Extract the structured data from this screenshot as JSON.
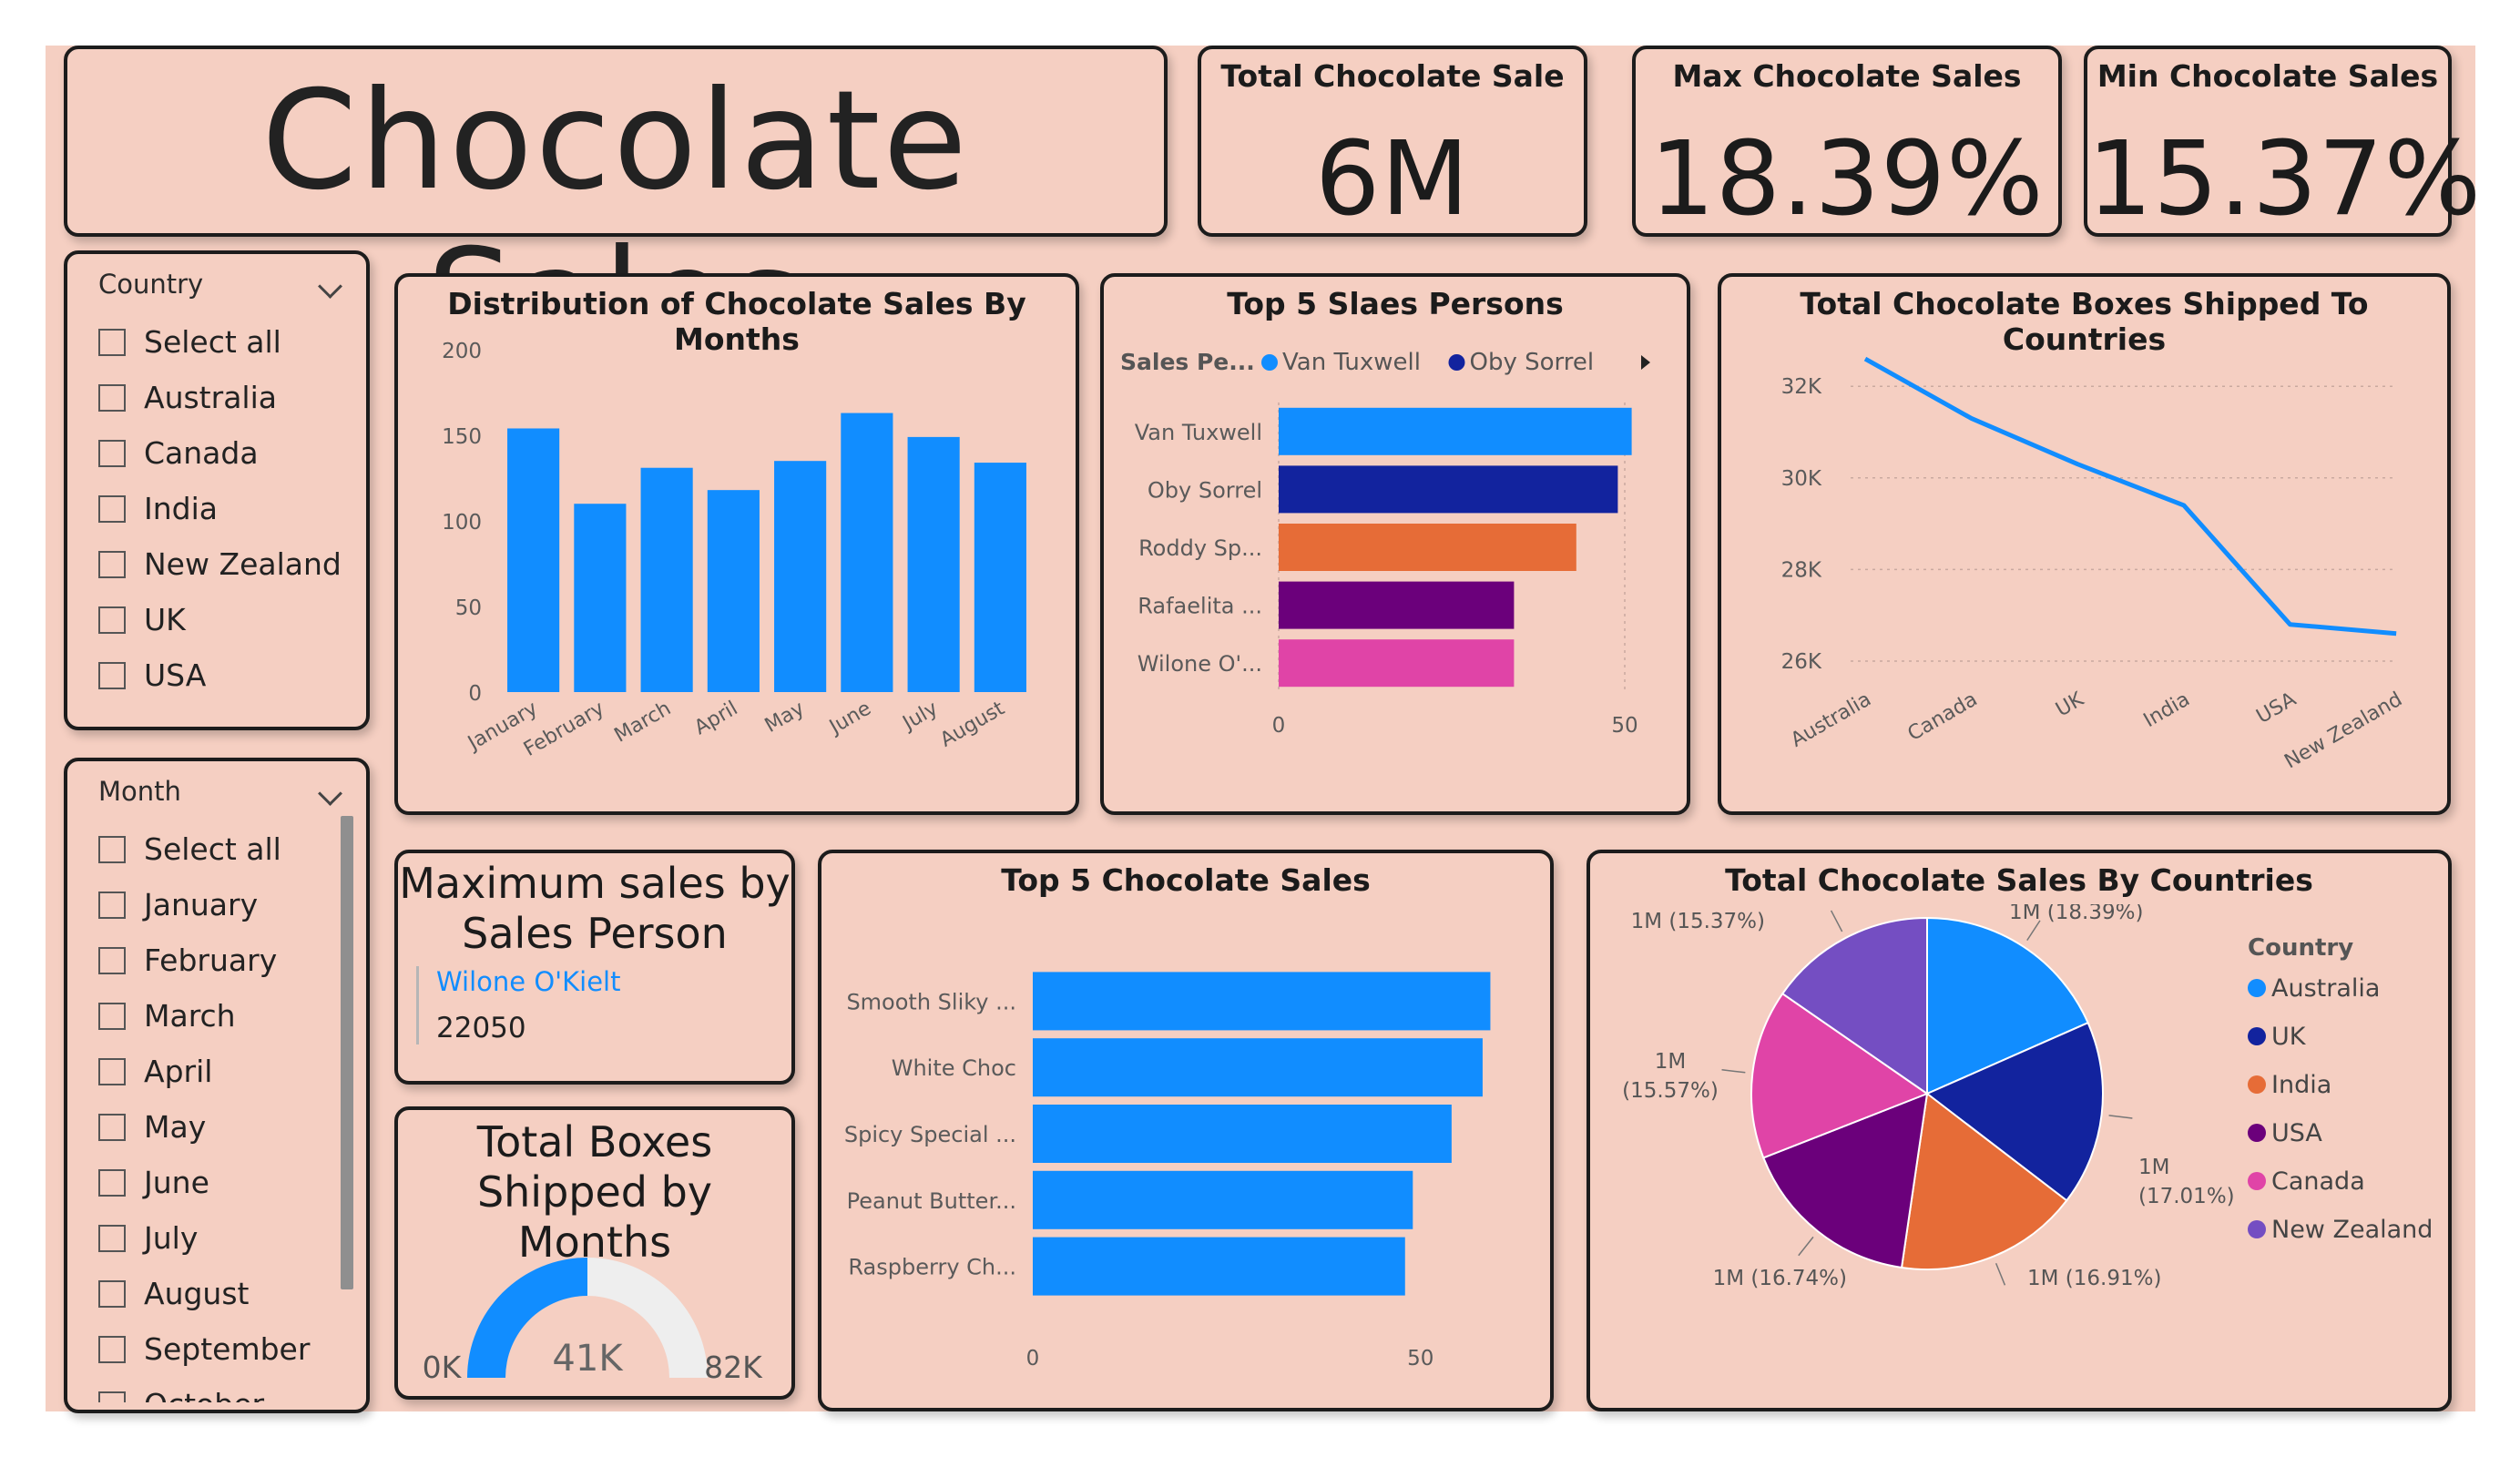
{
  "title": "Chocolate Sales",
  "kpis": {
    "total": {
      "label": "Total Chocolate Sale",
      "value": "6M"
    },
    "max": {
      "label": "Max Chocolate Sales",
      "value": "18.39%"
    },
    "min": {
      "label": "Min Chocolate Sales",
      "value": "15.37%"
    }
  },
  "country_slicer": {
    "header": "Country",
    "items": [
      "Select all",
      "Australia",
      "Canada",
      "India",
      "New Zealand",
      "UK",
      "USA"
    ]
  },
  "month_slicer": {
    "header": "Month",
    "items": [
      "Select all",
      "January",
      "February",
      "March",
      "April",
      "May",
      "June",
      "July",
      "August",
      "September",
      "October"
    ]
  },
  "max_sales_person": {
    "label": "Maximum sales by Sales Person",
    "name": "Wilone O'Kielt",
    "value": "22050"
  },
  "colors": {
    "background": "#f5cfc2",
    "blue": "#118dff",
    "navy": "#12239e",
    "orange": "#e66c37",
    "purple": "#6b007b",
    "pink": "#e044a7",
    "violet": "#744ec2"
  },
  "chart_data": [
    {
      "id": "monthly",
      "type": "bar",
      "title": "Distribution of Chocolate Sales By Months",
      "categories": [
        "January",
        "February",
        "March",
        "April",
        "May",
        "June",
        "July",
        "August"
      ],
      "values": [
        154,
        110,
        131,
        118,
        135,
        163,
        149,
        134
      ],
      "ylim": [
        0,
        200
      ],
      "yticks": [
        "0",
        "50",
        "100",
        "150",
        "200"
      ],
      "color": "#118dff"
    },
    {
      "id": "salespersons",
      "type": "bar",
      "orientation": "horizontal",
      "title": "Top 5 Slaes Persons",
      "legend_title": "Sales Pe...",
      "legend": [
        {
          "name": "Van Tuxwell",
          "color": "#118dff"
        },
        {
          "name": "Oby Sorrel",
          "color": "#12239e"
        }
      ],
      "categories": [
        "Van Tuxwell",
        "Oby Sorrel",
        "Roddy Sp...",
        "Rafaelita ...",
        "Wilone O'..."
      ],
      "values": [
        51,
        49,
        43,
        34,
        34
      ],
      "colors": [
        "#118dff",
        "#12239e",
        "#e66c37",
        "#6b007b",
        "#e044a7"
      ],
      "xlim": [
        0,
        55
      ],
      "xticks": [
        "0",
        "50"
      ]
    },
    {
      "id": "boxes",
      "type": "line",
      "title": "Total Chocolate Boxes Shipped To Countries",
      "categories": [
        "Australia",
        "Canada",
        "UK",
        "India",
        "USA",
        "New Zealand"
      ],
      "values": [
        32600,
        31300,
        30300,
        29400,
        26800,
        26600
      ],
      "ylim": [
        25800,
        32800
      ],
      "yticks": [
        {
          "v": 26000,
          "label": "26K"
        },
        {
          "v": 28000,
          "label": "28K"
        },
        {
          "v": 30000,
          "label": "30K"
        },
        {
          "v": 32000,
          "label": "32K"
        }
      ],
      "color": "#118dff"
    },
    {
      "id": "products",
      "type": "bar",
      "orientation": "horizontal",
      "title": "Top 5 Chocolate Sales",
      "categories": [
        "Smooth Sliky ...",
        "White Choc",
        "Spicy Special ...",
        "Peanut Butter...",
        "Raspberry Ch..."
      ],
      "values": [
        59,
        58,
        54,
        49,
        48
      ],
      "xlim": [
        0,
        62
      ],
      "xticks": [
        "0",
        "50"
      ],
      "color": "#118dff"
    },
    {
      "id": "gauge",
      "type": "gauge",
      "title": "Total Boxes Shipped by Months",
      "value": 41,
      "min": 0,
      "max": 82,
      "value_label": "41K",
      "min_label": "0K",
      "max_label": "82K",
      "color": "#118dff"
    },
    {
      "id": "countries_pie",
      "type": "pie",
      "title": "Total Chocolate Sales By Countries",
      "legend_title": "Country",
      "labels": [
        "Australia",
        "UK",
        "India",
        "USA",
        "Canada",
        "New Zealand"
      ],
      "values": [
        18.39,
        17.01,
        16.91,
        16.74,
        15.57,
        15.37
      ],
      "slice_labels": [
        "1M (18.39%)",
        "1M (17.01%)",
        "1M (16.91%)",
        "1M (16.74%)",
        "1M (15.57%)",
        "1M (15.37%)"
      ],
      "colors": [
        "#118dff",
        "#12239e",
        "#e66c37",
        "#6b007b",
        "#e044a7",
        "#744ec2"
      ]
    }
  ]
}
